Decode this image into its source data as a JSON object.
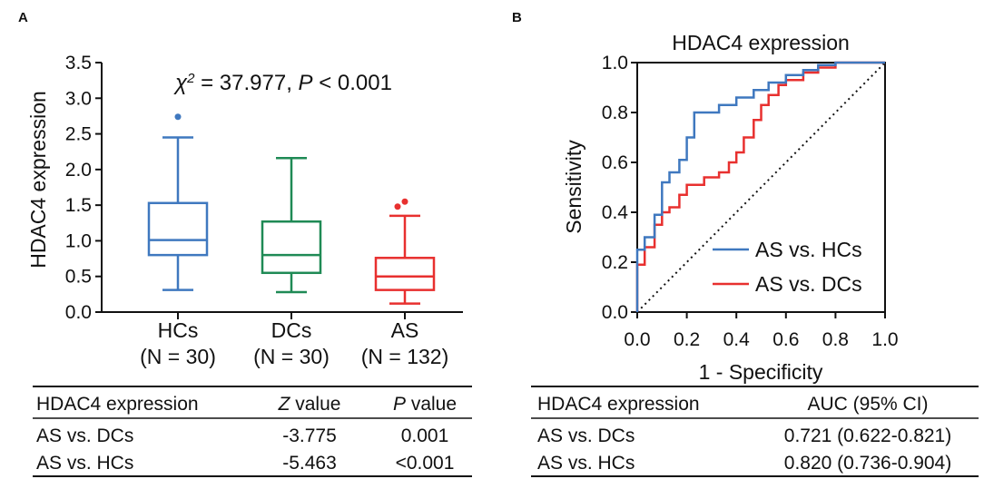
{
  "panel_a_label": "A",
  "panel_b_label": "B",
  "chart_data": [
    {
      "type": "box",
      "title": "",
      "ylabel": "HDAC4 expression",
      "ylim": [
        0,
        3.5
      ],
      "yticks": [
        "0.0",
        "0.5",
        "1.0",
        "1.5",
        "2.0",
        "2.5",
        "3.0",
        "3.5"
      ],
      "annotation": {
        "chi": "χ",
        "sup": "2",
        "value_text": " = 37.977, ",
        "p": "P",
        "p_text": " < 0.001"
      },
      "groups": [
        {
          "name": "HCs",
          "n_label": "(N = 30)",
          "color": "#3f78bf",
          "min": 0.31,
          "q1": 0.8,
          "median": 1.01,
          "q3": 1.53,
          "max": 2.45,
          "outliers": [
            2.74
          ]
        },
        {
          "name": "DCs",
          "n_label": "(N = 30)",
          "color": "#1f8a55",
          "min": 0.28,
          "q1": 0.55,
          "median": 0.8,
          "q3": 1.27,
          "max": 2.16,
          "outliers": []
        },
        {
          "name": "AS",
          "n_label": "(N = 132)",
          "color": "#e8302f",
          "min": 0.12,
          "q1": 0.31,
          "median": 0.5,
          "q3": 0.76,
          "max": 1.35,
          "outliers": [
            1.48,
            1.55
          ]
        }
      ]
    },
    {
      "type": "line",
      "title": "HDAC4 expression",
      "xlabel": "1 - Specificity",
      "ylabel": "Sensitivity",
      "xlim": [
        0,
        1
      ],
      "ylim": [
        0,
        1
      ],
      "xticks": [
        "0.0",
        "0.2",
        "0.4",
        "0.6",
        "0.8",
        "1.0"
      ],
      "yticks": [
        "0.0",
        "0.2",
        "0.4",
        "0.6",
        "0.8",
        "1.0"
      ],
      "reference_line": "diagonal",
      "legend_position": "bottom-right",
      "series": [
        {
          "name": "AS vs. HCs",
          "color": "#3f78bf",
          "x": [
            0,
            0,
            0.03,
            0.03,
            0.07,
            0.07,
            0.1,
            0.1,
            0.13,
            0.13,
            0.17,
            0.17,
            0.2,
            0.2,
            0.23,
            0.23,
            0.33,
            0.33,
            0.4,
            0.4,
            0.47,
            0.47,
            0.53,
            0.53,
            0.6,
            0.6,
            0.67,
            0.67,
            0.73,
            0.73,
            0.8,
            0.8,
            1.0
          ],
          "y": [
            0,
            0.25,
            0.25,
            0.3,
            0.3,
            0.39,
            0.39,
            0.52,
            0.52,
            0.56,
            0.56,
            0.61,
            0.61,
            0.7,
            0.7,
            0.8,
            0.8,
            0.83,
            0.83,
            0.86,
            0.86,
            0.89,
            0.89,
            0.92,
            0.92,
            0.95,
            0.95,
            0.97,
            0.97,
            0.99,
            0.99,
            1.0,
            1.0
          ]
        },
        {
          "name": "AS vs. DCs",
          "color": "#e8302f",
          "x": [
            0,
            0,
            0.03,
            0.03,
            0.07,
            0.07,
            0.1,
            0.1,
            0.13,
            0.13,
            0.17,
            0.17,
            0.2,
            0.2,
            0.27,
            0.27,
            0.33,
            0.33,
            0.37,
            0.37,
            0.4,
            0.4,
            0.43,
            0.43,
            0.47,
            0.47,
            0.5,
            0.5,
            0.53,
            0.53,
            0.57,
            0.57,
            0.6,
            0.6,
            0.67,
            0.67,
            0.73,
            0.73,
            0.8,
            0.8,
            1.0
          ],
          "y": [
            0,
            0.19,
            0.19,
            0.26,
            0.26,
            0.35,
            0.35,
            0.4,
            0.4,
            0.42,
            0.42,
            0.47,
            0.47,
            0.51,
            0.51,
            0.54,
            0.54,
            0.56,
            0.56,
            0.6,
            0.6,
            0.64,
            0.64,
            0.7,
            0.7,
            0.77,
            0.77,
            0.83,
            0.83,
            0.87,
            0.87,
            0.91,
            0.91,
            0.93,
            0.93,
            0.96,
            0.96,
            0.98,
            0.98,
            1.0,
            1.0
          ]
        }
      ]
    }
  ],
  "table_a": {
    "headers": [
      "HDAC4 expression",
      "Z value",
      "P",
      " value"
    ],
    "rows": [
      [
        "AS vs. DCs",
        "-3.775",
        "0.001"
      ],
      [
        "AS vs. HCs",
        "-5.463",
        "<0.001"
      ]
    ]
  },
  "table_b": {
    "headers": [
      "HDAC4 expression",
      "AUC (95% CI)"
    ],
    "rows": [
      [
        "AS vs. DCs",
        "0.721 (0.622-0.821)"
      ],
      [
        "AS vs. HCs",
        "0.820 (0.736-0.904)"
      ]
    ]
  }
}
